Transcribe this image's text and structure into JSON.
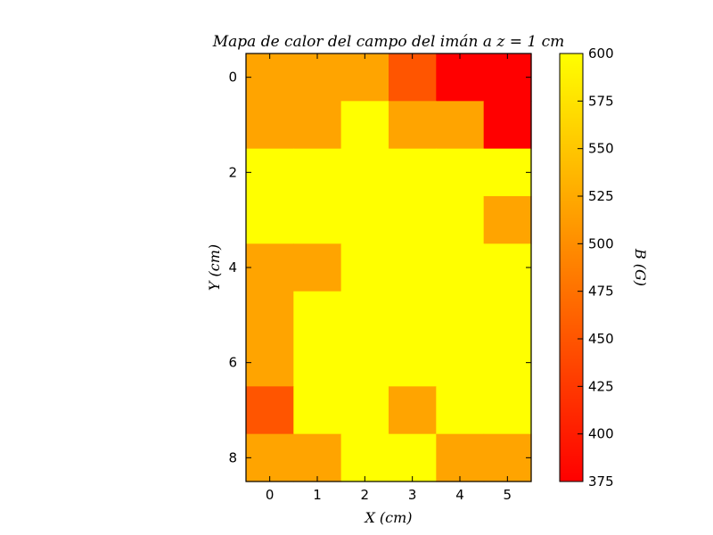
{
  "chart_data": {
    "type": "heatmap",
    "title": "Mapa de calor del campo del imán a z = 1 cm",
    "xlabel": "X (cm)",
    "ylabel": "Y (cm)",
    "colorbar_label": "B (G)",
    "x": [
      0,
      1,
      2,
      3,
      4,
      5
    ],
    "y": [
      0,
      1,
      2,
      3,
      4,
      5,
      6,
      7,
      8
    ],
    "x_ticks": [
      0,
      1,
      2,
      3,
      4,
      5
    ],
    "y_ticks": [
      0,
      2,
      4,
      6,
      8
    ],
    "colorbar_ticks": [
      375,
      400,
      425,
      450,
      475,
      500,
      525,
      550,
      575,
      600
    ],
    "vmin": 375,
    "vmax": 600,
    "colormap": "autumn",
    "colors": {
      "low": "#ff0000",
      "high": "#ffff00"
    },
    "z": [
      [
        520,
        520,
        520,
        450,
        375,
        375
      ],
      [
        520,
        520,
        600,
        520,
        520,
        375
      ],
      [
        600,
        600,
        600,
        600,
        600,
        600
      ],
      [
        600,
        600,
        600,
        600,
        600,
        520
      ],
      [
        520,
        520,
        600,
        600,
        600,
        600
      ],
      [
        520,
        600,
        600,
        600,
        600,
        600
      ],
      [
        520,
        600,
        600,
        600,
        600,
        600
      ],
      [
        450,
        600,
        600,
        520,
        600,
        600
      ],
      [
        520,
        520,
        600,
        600,
        520,
        520
      ]
    ]
  }
}
